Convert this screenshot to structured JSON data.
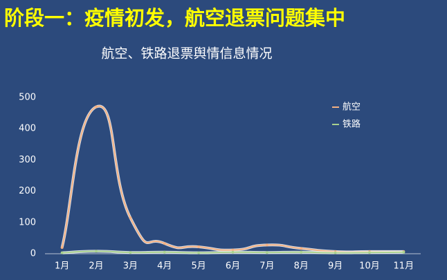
{
  "header": {
    "title": "阶段一：疫情初发，航空退票问题集中"
  },
  "chart_data": {
    "type": "line",
    "title": "航空、铁路退票舆情信息情况",
    "categories": [
      "1月",
      "2月",
      "3月",
      "4月",
      "5月",
      "6月",
      "7月",
      "8月",
      "9月",
      "10月",
      "11月"
    ],
    "series": [
      {
        "name": "航空",
        "color": "#f4b183",
        "values": [
          20,
          470,
          115,
          33,
          22,
          12,
          28,
          17,
          7,
          7,
          7
        ]
      },
      {
        "name": "铁路",
        "color": "#a9d18e",
        "values": [
          3,
          8,
          4,
          5,
          3,
          5,
          4,
          5,
          3,
          4,
          5
        ]
      }
    ],
    "ylim": [
      0,
      500
    ],
    "yticks": [
      0,
      100,
      200,
      300,
      400,
      500
    ],
    "grid": false,
    "smooth": true,
    "legend": "upper right"
  }
}
